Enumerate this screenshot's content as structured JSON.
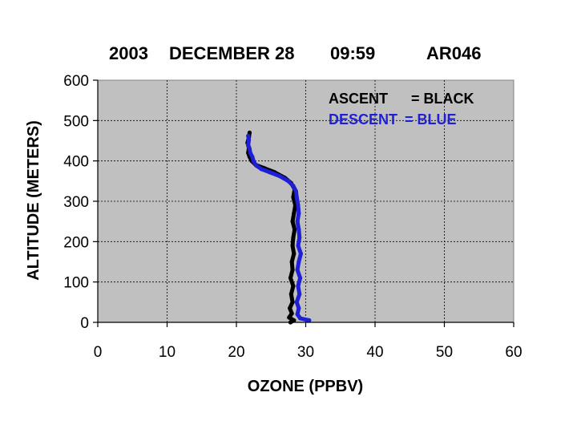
{
  "chart_data": {
    "type": "scatter",
    "title_parts": [
      "2003",
      "DECEMBER 28",
      "09:59",
      "AR046"
    ],
    "xlabel": "OZONE (PPBV)",
    "ylabel": "ALTITUDE (METERS)",
    "xlim": [
      0,
      60
    ],
    "ylim": [
      0,
      600
    ],
    "xticks": [
      "0",
      "10",
      "20",
      "30",
      "40",
      "50",
      "60"
    ],
    "yticks": [
      "0",
      "100",
      "200",
      "300",
      "400",
      "500",
      "600"
    ],
    "grid": true,
    "plot_background": "#c0c0c0",
    "legend": {
      "placement": "top-right",
      "entries": [
        {
          "label": "ASCENT",
          "suffix": "= BLACK",
          "color": "#000000"
        },
        {
          "label": "DESCENT",
          "suffix": "= BLUE",
          "color": "#1f1fd6"
        }
      ]
    },
    "series": [
      {
        "color": "#000000",
        "points": [
          [
            27.8,
            0
          ],
          [
            28.3,
            5
          ],
          [
            27.6,
            12
          ],
          [
            28.0,
            22
          ],
          [
            27.7,
            35
          ],
          [
            28.1,
            50
          ],
          [
            27.9,
            70
          ],
          [
            28.2,
            90
          ],
          [
            27.8,
            110
          ],
          [
            28.1,
            130
          ],
          [
            28.0,
            150
          ],
          [
            28.3,
            170
          ],
          [
            28.1,
            190
          ],
          [
            28.2,
            210
          ],
          [
            28.4,
            230
          ],
          [
            28.1,
            250
          ],
          [
            28.3,
            270
          ],
          [
            28.5,
            290
          ],
          [
            28.2,
            310
          ],
          [
            28.4,
            330
          ],
          [
            27.9,
            345
          ],
          [
            27.0,
            358
          ],
          [
            25.5,
            372
          ],
          [
            24.0,
            382
          ],
          [
            22.8,
            390
          ],
          [
            22.2,
            400
          ],
          [
            21.9,
            410
          ],
          [
            21.7,
            420
          ],
          [
            21.8,
            432
          ],
          [
            21.6,
            445
          ],
          [
            21.8,
            458
          ],
          [
            21.9,
            470
          ]
        ]
      },
      {
        "color": "#1f1fd6",
        "points": [
          [
            30.5,
            5
          ],
          [
            29.2,
            10
          ],
          [
            28.8,
            20
          ],
          [
            29.0,
            35
          ],
          [
            28.7,
            50
          ],
          [
            29.1,
            70
          ],
          [
            28.9,
            90
          ],
          [
            29.2,
            110
          ],
          [
            28.8,
            130
          ],
          [
            29.0,
            150
          ],
          [
            29.3,
            170
          ],
          [
            28.9,
            190
          ],
          [
            29.1,
            210
          ],
          [
            29.0,
            230
          ],
          [
            28.8,
            250
          ],
          [
            29.0,
            270
          ],
          [
            28.9,
            290
          ],
          [
            28.7,
            310
          ],
          [
            28.6,
            325
          ],
          [
            28.2,
            338
          ],
          [
            27.5,
            350
          ],
          [
            26.3,
            362
          ],
          [
            24.8,
            372
          ],
          [
            23.6,
            380
          ],
          [
            22.9,
            388
          ],
          [
            22.5,
            398
          ],
          [
            22.3,
            410
          ],
          [
            22.0,
            420
          ],
          [
            21.9,
            430
          ],
          [
            21.7,
            440
          ],
          [
            21.8,
            452
          ],
          [
            21.7,
            462
          ]
        ]
      }
    ]
  }
}
